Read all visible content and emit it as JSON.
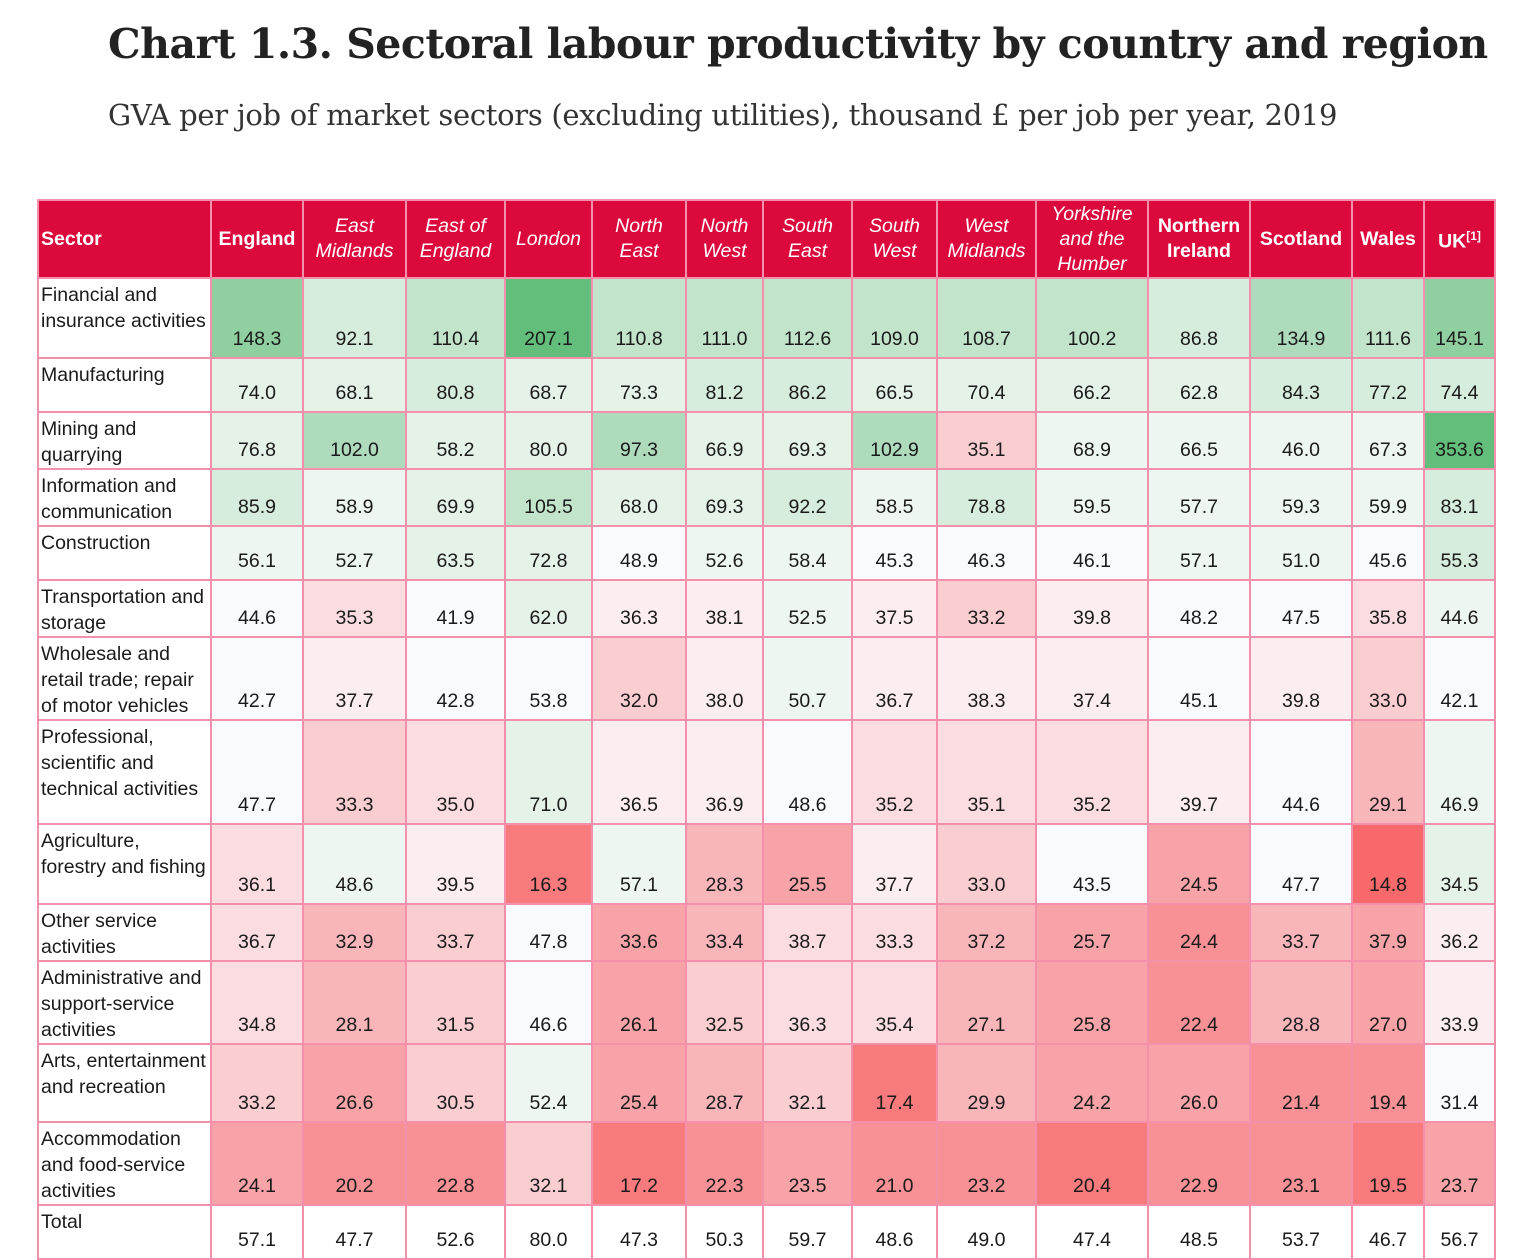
{
  "title": "Chart 1.3. Sectoral labour productivity by country and region",
  "subtitle": "GVA per job of market sectors (excluding utilities), thousand £ per job per year, 2019",
  "chart_data": {
    "type": "heatmap",
    "row_header": "Sector",
    "columns": [
      {
        "label": "England",
        "bold": true
      },
      {
        "label": "East Midlands",
        "bold": false
      },
      {
        "label": "East of England",
        "bold": false
      },
      {
        "label": "London",
        "bold": false
      },
      {
        "label": "North East",
        "bold": false
      },
      {
        "label": "North West",
        "bold": false
      },
      {
        "label": "South East",
        "bold": false
      },
      {
        "label": "South West",
        "bold": false
      },
      {
        "label": "West Midlands",
        "bold": false
      },
      {
        "label": "Yorkshire and the Humber",
        "bold": false
      },
      {
        "label": "Northern Ireland",
        "bold": true
      },
      {
        "label": "Scotland",
        "bold": true
      },
      {
        "label": "Wales",
        "bold": true
      },
      {
        "label": "UK",
        "bold": true,
        "note": "[1]"
      }
    ],
    "palette": {
      "G4": "#63be7b",
      "G3": "#90d0a0",
      "G2": "#aedbbb",
      "G1": "#c1e4ca",
      "G0": "#d6ecdc",
      "g": "#e4f2e8",
      "gl": "#eef6f1",
      "w": "#f8fafc",
      "p0": "#fbedf0",
      "p1": "#fbdde1",
      "p2": "#facdd1",
      "p3": "#f9b6ba",
      "p4": "#f8a3a7",
      "p5": "#f79195",
      "p6": "#f77a7d",
      "p7": "#f8696b",
      "W": "#ffffff"
    },
    "rows": [
      {
        "sector": "Financial and insurance activities",
        "values": [
          "148.3",
          "92.1",
          "110.4",
          "207.1",
          "110.8",
          "111.0",
          "112.6",
          "109.0",
          "108.7",
          "100.2",
          "86.8",
          "134.9",
          "111.6",
          "145.1"
        ],
        "colors": [
          "G3",
          "G0",
          "G1",
          "G4",
          "G1",
          "G1",
          "G1",
          "G1",
          "G1",
          "G1",
          "G0",
          "G2",
          "G1",
          "G3"
        ]
      },
      {
        "sector": "Manufacturing",
        "values": [
          "74.0",
          "68.1",
          "80.8",
          "68.7",
          "73.3",
          "81.2",
          "86.2",
          "66.5",
          "70.4",
          "66.2",
          "62.8",
          "84.3",
          "77.2",
          "74.4"
        ],
        "colors": [
          "g",
          "g",
          "G0",
          "g",
          "g",
          "G0",
          "G0",
          "g",
          "g",
          "g",
          "g",
          "G0",
          "G0",
          "G0"
        ]
      },
      {
        "sector": "Mining and quarrying",
        "values": [
          "76.8",
          "102.0",
          "58.2",
          "80.0",
          "97.3",
          "66.9",
          "69.3",
          "102.9",
          "35.1",
          "68.9",
          "66.5",
          "46.0",
          "67.3",
          "353.6"
        ],
        "colors": [
          "g",
          "G2",
          "g",
          "g",
          "G2",
          "g",
          "g",
          "G2",
          "p2",
          "gl",
          "gl",
          "gl",
          "gl",
          "G4"
        ]
      },
      {
        "sector": "Information and communication",
        "values": [
          "85.9",
          "58.9",
          "69.9",
          "105.5",
          "68.0",
          "69.3",
          "92.2",
          "58.5",
          "78.8",
          "59.5",
          "57.7",
          "59.3",
          "59.9",
          "83.1"
        ],
        "colors": [
          "G0",
          "gl",
          "g",
          "G1",
          "g",
          "g",
          "G0",
          "gl",
          "G0",
          "gl",
          "gl",
          "gl",
          "gl",
          "G0"
        ]
      },
      {
        "sector": "Construction",
        "values": [
          "56.1",
          "52.7",
          "63.5",
          "72.8",
          "48.9",
          "52.6",
          "58.4",
          "45.3",
          "46.3",
          "46.1",
          "57.1",
          "51.0",
          "45.6",
          "55.3"
        ],
        "colors": [
          "gl",
          "gl",
          "g",
          "g",
          "w",
          "gl",
          "gl",
          "w",
          "w",
          "w",
          "gl",
          "gl",
          "w",
          "G0"
        ]
      },
      {
        "sector": "Transportation and storage",
        "values": [
          "44.6",
          "35.3",
          "41.9",
          "62.0",
          "36.3",
          "38.1",
          "52.5",
          "37.5",
          "33.2",
          "39.8",
          "48.2",
          "47.5",
          "35.8",
          "44.6"
        ],
        "colors": [
          "w",
          "p1",
          "w",
          "g",
          "p0",
          "p0",
          "gl",
          "p0",
          "p2",
          "p0",
          "w",
          "w",
          "p1",
          "gl"
        ]
      },
      {
        "sector": "Wholesale and retail trade; repair of motor vehicles",
        "values": [
          "42.7",
          "37.7",
          "42.8",
          "53.8",
          "32.0",
          "38.0",
          "50.7",
          "36.7",
          "38.3",
          "37.4",
          "45.1",
          "39.8",
          "33.0",
          "42.1"
        ],
        "colors": [
          "w",
          "p0",
          "w",
          "w",
          "p2",
          "p0",
          "gl",
          "p0",
          "p0",
          "p0",
          "w",
          "p0",
          "p2",
          "w"
        ]
      },
      {
        "sector": "Professional, scientific and technical activities",
        "values": [
          "47.7",
          "33.3",
          "35.0",
          "71.0",
          "36.5",
          "36.9",
          "48.6",
          "35.2",
          "35.1",
          "35.2",
          "39.7",
          "44.6",
          "29.1",
          "46.9"
        ],
        "colors": [
          "w",
          "p2",
          "p1",
          "g",
          "p0",
          "p0",
          "w",
          "p1",
          "p1",
          "p1",
          "p0",
          "w",
          "p3",
          "gl"
        ]
      },
      {
        "sector": "Agriculture, forestry and fishing",
        "values": [
          "36.1",
          "48.6",
          "39.5",
          "16.3",
          "57.1",
          "28.3",
          "25.5",
          "37.7",
          "33.0",
          "43.5",
          "24.5",
          "47.7",
          "14.8",
          "34.5"
        ],
        "colors": [
          "p1",
          "gl",
          "p0",
          "p6",
          "gl",
          "p3",
          "p4",
          "p0",
          "p2",
          "w",
          "p4",
          "w",
          "p7",
          "g"
        ]
      },
      {
        "sector": "Other service activities",
        "values": [
          "36.7",
          "32.9",
          "33.7",
          "47.8",
          "33.6",
          "33.4",
          "38.7",
          "33.3",
          "37.2",
          "25.7",
          "24.4",
          "33.7",
          "37.9",
          "36.2"
        ],
        "colors": [
          "p1",
          "p3",
          "p2",
          "w",
          "p4",
          "p3",
          "p1",
          "p1",
          "p3",
          "p4",
          "p5",
          "p3",
          "p4",
          "p0"
        ]
      },
      {
        "sector": "Administrative and support-service activities",
        "values": [
          "34.8",
          "28.1",
          "31.5",
          "46.6",
          "26.1",
          "32.5",
          "36.3",
          "35.4",
          "27.1",
          "25.8",
          "22.4",
          "28.8",
          "27.0",
          "33.9"
        ],
        "colors": [
          "p1",
          "p3",
          "p2",
          "w",
          "p4",
          "p2",
          "p1",
          "p1",
          "p3",
          "p4",
          "p5",
          "p3",
          "p4",
          "p0"
        ]
      },
      {
        "sector": "Arts, entertainment and recreation",
        "values": [
          "33.2",
          "26.6",
          "30.5",
          "52.4",
          "25.4",
          "28.7",
          "32.1",
          "17.4",
          "29.9",
          "24.2",
          "26.0",
          "21.4",
          "19.4",
          "31.4"
        ],
        "colors": [
          "p2",
          "p4",
          "p2",
          "gl",
          "p4",
          "p3",
          "p2",
          "p6",
          "p3",
          "p4",
          "p4",
          "p5",
          "p5",
          "w"
        ]
      },
      {
        "sector": "Accommodation and food-service activities",
        "values": [
          "24.1",
          "20.2",
          "22.8",
          "32.1",
          "17.2",
          "22.3",
          "23.5",
          "21.0",
          "23.2",
          "20.4",
          "22.9",
          "23.1",
          "19.5",
          "23.7"
        ],
        "colors": [
          "p4",
          "p5",
          "p5",
          "p2",
          "p6",
          "p5",
          "p4",
          "p5",
          "p5",
          "p6",
          "p5",
          "p5",
          "p6",
          "p4"
        ]
      },
      {
        "sector": "Total",
        "values": [
          "57.1",
          "47.7",
          "52.6",
          "80.0",
          "47.3",
          "50.3",
          "59.7",
          "48.6",
          "49.0",
          "47.4",
          "48.5",
          "53.7",
          "46.7",
          "56.7"
        ],
        "colors": [
          "W",
          "W",
          "W",
          "W",
          "W",
          "W",
          "W",
          "W",
          "W",
          "W",
          "W",
          "W",
          "W",
          "W"
        ]
      }
    ]
  }
}
